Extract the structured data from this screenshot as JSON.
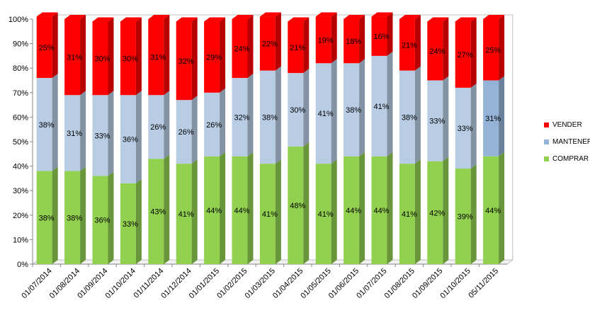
{
  "chart_data": {
    "type": "bar",
    "stacked": true,
    "percent": true,
    "title": "",
    "xlabel": "",
    "ylabel": "",
    "ylim": [
      0,
      100
    ],
    "yticks": [
      "0%",
      "10%",
      "20%",
      "30%",
      "40%",
      "50%",
      "60%",
      "70%",
      "80%",
      "90%",
      "100%"
    ],
    "categories": [
      "01/07/2014",
      "01/08/2014",
      "01/09/2014",
      "01/10/2014",
      "01/11/2014",
      "01/12/2014",
      "01/01/2015",
      "01/02/2015",
      "01/03/2015",
      "01/04/2015",
      "01/05/2015",
      "01/06/2015",
      "01/07/2015",
      "01/08/2015",
      "01/09/2015",
      "01/10/2015",
      "05/11/2015"
    ],
    "series": [
      {
        "name": "COMPRAR",
        "color": "#92D050",
        "values": [
          38,
          38,
          36,
          33,
          43,
          41,
          44,
          44,
          41,
          48,
          41,
          44,
          44,
          41,
          42,
          39,
          44
        ]
      },
      {
        "name": "MANTENER",
        "color": "#B8CCE4",
        "values": [
          38,
          31,
          33,
          36,
          26,
          26,
          26,
          32,
          38,
          30,
          41,
          38,
          41,
          38,
          33,
          33,
          31
        ]
      },
      {
        "name": "VENDER",
        "color": "#FF0000",
        "values": [
          25,
          31,
          30,
          30,
          31,
          32,
          29,
          24,
          22,
          21,
          19,
          18,
          16,
          21,
          24,
          27,
          25
        ]
      }
    ],
    "highlight_colors": {
      "MANTENER": "#95B3D7"
    },
    "data_labels": true,
    "grid": false,
    "legend_position": "right",
    "legend_order": [
      "VENDER",
      "MANTENER",
      "COMPRAR"
    ]
  }
}
